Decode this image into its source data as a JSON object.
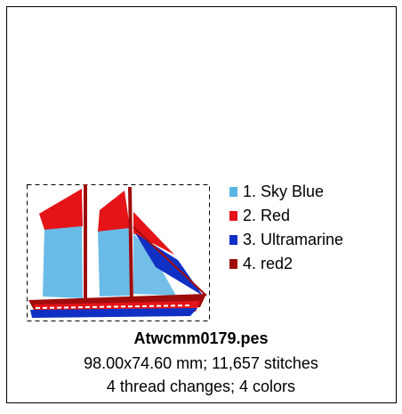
{
  "legend": [
    {
      "label": "1.  Sky Blue",
      "color": "#5ab4e4"
    },
    {
      "label": "2.  Red",
      "color": "#e41418"
    },
    {
      "label": "3.  Ultramarine",
      "color": "#1030c4"
    },
    {
      "label": "4.  red2",
      "color": "#a00c0c"
    }
  ],
  "filename": "Atwcmm0179.pes",
  "details": [
    "98.00x74.60 mm; 11,657 stitches",
    "4 thread changes; 4 colors"
  ]
}
